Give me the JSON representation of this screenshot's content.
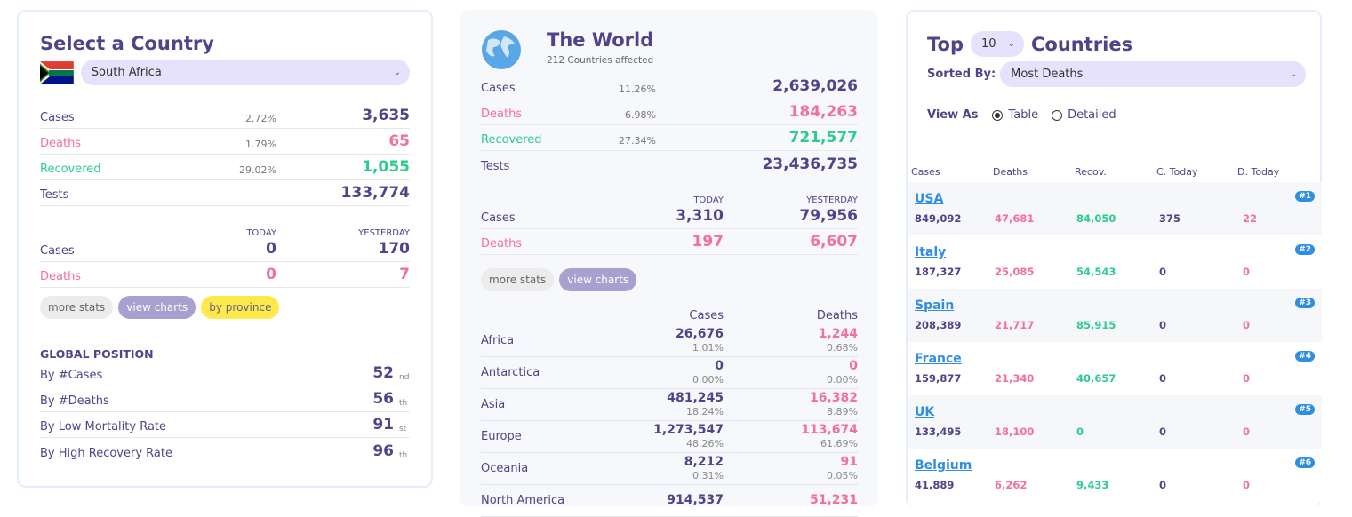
{
  "country_panel": {
    "title": "Select a Country",
    "selected_country": "South Africa",
    "stats": [
      {
        "label": "Cases",
        "pct": "2.72%",
        "value": "3,635"
      },
      {
        "label": "Deaths",
        "pct": "1.79%",
        "value": "65"
      },
      {
        "label": "Recovered",
        "pct": "29.02%",
        "value": "1,055"
      },
      {
        "label": "Tests",
        "pct": "",
        "value": "133,774"
      }
    ],
    "today_label": "TODAY",
    "yesterday_label": "YESTERDAY",
    "daily": [
      {
        "label": "Cases",
        "today": "0",
        "yesterday": "170"
      },
      {
        "label": "Deaths",
        "today": "0",
        "yesterday": "7"
      }
    ],
    "buttons": {
      "more_stats": "more stats",
      "view_charts": "view charts",
      "by_province": "by province"
    },
    "global_position_title": "GLOBAL POSITION",
    "positions": [
      {
        "label": "By #Cases",
        "rank": "52",
        "suffix": "nd"
      },
      {
        "label": "By #Deaths",
        "rank": "56",
        "suffix": "th"
      },
      {
        "label": "By Low Mortality Rate",
        "rank": "91",
        "suffix": "st"
      },
      {
        "label": "By High Recovery Rate",
        "rank": "96",
        "suffix": "th"
      }
    ]
  },
  "world_panel": {
    "title": "The World",
    "subtitle": "212 Countries affected",
    "stats": [
      {
        "label": "Cases",
        "pct": "11.26%",
        "value": "2,639,026"
      },
      {
        "label": "Deaths",
        "pct": "6.98%",
        "value": "184,263"
      },
      {
        "label": "Recovered",
        "pct": "27.34%",
        "value": "721,577"
      },
      {
        "label": "Tests",
        "pct": "",
        "value": "23,436,735"
      }
    ],
    "today_label": "TODAY",
    "yesterday_label": "YESTERDAY",
    "daily": [
      {
        "label": "Cases",
        "today": "3,310",
        "yesterday": "79,956"
      },
      {
        "label": "Deaths",
        "today": "197",
        "yesterday": "6,607"
      }
    ],
    "buttons": {
      "more_stats": "more stats",
      "view_charts": "view charts"
    },
    "continent_headers": {
      "cases": "Cases",
      "deaths": "Deaths"
    },
    "continents": [
      {
        "name": "Africa",
        "cases": "26,676",
        "cases_pct": "1.01%",
        "deaths": "1,244",
        "deaths_pct": "0.68%"
      },
      {
        "name": "Antarctica",
        "cases": "0",
        "cases_pct": "0.00%",
        "deaths": "0",
        "deaths_pct": "0.00%"
      },
      {
        "name": "Asia",
        "cases": "481,245",
        "cases_pct": "18.24%",
        "deaths": "16,382",
        "deaths_pct": "8.89%"
      },
      {
        "name": "Europe",
        "cases": "1,273,547",
        "cases_pct": "48.26%",
        "deaths": "113,674",
        "deaths_pct": "61.69%"
      },
      {
        "name": "Oceania",
        "cases": "8,212",
        "cases_pct": "0.31%",
        "deaths": "91",
        "deaths_pct": "0.05%"
      },
      {
        "name": "North America",
        "cases": "914,537",
        "cases_pct": "",
        "deaths": "51,231",
        "deaths_pct": ""
      }
    ]
  },
  "top_panel": {
    "title_prefix": "Top",
    "count": "10",
    "title_suffix": "Countries",
    "sorted_by_label": "Sorted By:",
    "sorted_by": "Most Deaths",
    "view_as_label": "View As",
    "view_options": [
      "Table",
      "Detailed"
    ],
    "view_selected": "Table",
    "columns": [
      "Cases",
      "Deaths",
      "Recov.",
      "C. Today",
      "D. Today"
    ],
    "rows": [
      {
        "country": "USA",
        "rank": "#1",
        "cases": "849,092",
        "deaths": "47,681",
        "recovered": "84,050",
        "c_today": "375",
        "d_today": "22"
      },
      {
        "country": "Italy",
        "rank": "#2",
        "cases": "187,327",
        "deaths": "25,085",
        "recovered": "54,543",
        "c_today": "0",
        "d_today": "0"
      },
      {
        "country": "Spain",
        "rank": "#3",
        "cases": "208,389",
        "deaths": "21,717",
        "recovered": "85,915",
        "c_today": "0",
        "d_today": "0"
      },
      {
        "country": "France",
        "rank": "#4",
        "cases": "159,877",
        "deaths": "21,340",
        "recovered": "40,657",
        "c_today": "0",
        "d_today": "0"
      },
      {
        "country": "UK",
        "rank": "#5",
        "cases": "133,495",
        "deaths": "18,100",
        "recovered": "0",
        "c_today": "0",
        "d_today": "0"
      },
      {
        "country": "Belgium",
        "rank": "#6",
        "cases": "41,889",
        "deaths": "6,262",
        "recovered": "9,433",
        "c_today": "0",
        "d_today": "0"
      }
    ]
  },
  "colors": {
    "primary": "#4f4389",
    "deaths": "#f4709c",
    "recovered": "#2ecb8e",
    "select_bg": "#e6e2fd",
    "link": "#2f8ee0"
  }
}
